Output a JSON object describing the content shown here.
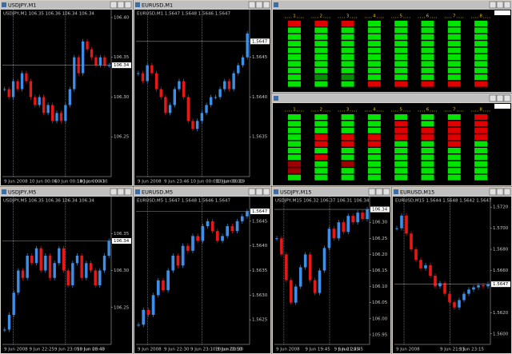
{
  "windows": [
    {
      "title": "USDJPY,M1",
      "header": "USDJPY,M1  106.35 106.36 106.34 106.34",
      "ylim": [
        106.2,
        106.41
      ],
      "yticks": [
        {
          "value": 106.4,
          "label": "106.40"
        },
        106.35,
        {
          "value": 106.3,
          "label": "106.30"
        },
        106.25
      ],
      "price_line": 106.34,
      "times": [
        "9 Jun 2008",
        "10 Jun 00:06",
        "10 Jun 00:14",
        "10 Jun 00:30",
        "10 Jun 00:41"
      ],
      "closes": [
        106.31,
        106.3,
        106.32,
        106.31,
        106.33,
        106.32,
        106.3,
        106.29,
        106.3,
        106.28,
        106.29,
        106.27,
        106.28,
        106.27,
        106.29,
        106.31,
        106.35,
        106.33,
        106.37,
        106.36,
        106.35,
        106.34,
        106.35,
        106.34,
        106.34
      ]
    },
    {
      "title": "EURUSD,M1",
      "header": "EURUSD,M1  1.5647 1.5648 1.5646 1.5647",
      "ylim": [
        1.563,
        1.5651
      ],
      "yticks": [
        1.5645,
        {
          "value": 1.564,
          "label": "1.5640"
        },
        1.5635
      ],
      "price_line": 1.5647,
      "times": [
        "9 Jun 2008",
        "9 Jun 23:46",
        "10 Jun 00:01",
        "10 Jun 00:19",
        "10 Jun 00:30"
      ],
      "closes": [
        1.5643,
        1.5642,
        1.5644,
        1.5643,
        1.5641,
        1.564,
        1.5638,
        1.5639,
        1.5641,
        1.5642,
        1.564,
        1.5637,
        1.5636,
        1.5637,
        1.5638,
        1.5639,
        1.564,
        1.564,
        1.5641,
        1.5642,
        1.5641,
        1.5643,
        1.5644,
        1.5645,
        1.5648
      ]
    },
    {
      "title": "USDJPY,M5",
      "header": "USDJPY,M5  106.35 106.36 106.34 106.34",
      "ylim": [
        106.2,
        106.4
      ],
      "yticks": [
        106.35,
        {
          "value": 106.3,
          "label": "106.30"
        },
        106.25
      ],
      "price_line": 106.34,
      "times": [
        "9 Jun 2008",
        "9 Jun 22:25",
        "9 Jun 23:05",
        "9 Jun 23:45",
        "10 Jun 00:40"
      ],
      "closes": [
        106.22,
        106.24,
        106.27,
        106.3,
        106.29,
        106.32,
        106.31,
        106.33,
        106.3,
        106.32,
        106.29,
        106.31,
        106.33,
        106.3,
        106.28,
        106.31,
        106.32,
        106.29,
        106.31,
        106.3,
        106.28,
        106.3,
        106.32,
        106.34
      ]
    },
    {
      "title": "EURUSD,M5",
      "header": "EURUSD,M5  1.5647 1.5648 1.5646 1.5647",
      "ylim": [
        1.562,
        1.565
      ],
      "yticks": [
        1.5645,
        {
          "value": 1.564,
          "label": "1.5640"
        },
        1.5635,
        {
          "value": 1.563,
          "label": "1.5630"
        },
        1.5625
      ],
      "price_line": 1.5647,
      "times": [
        "9 Jun 2008",
        "9 Jun 22:30",
        "9 Jun 23:10",
        "9 Jun 23:50",
        "10 Jun 00:30"
      ],
      "closes": [
        1.5624,
        1.5627,
        1.5626,
        1.563,
        1.5633,
        1.5631,
        1.5635,
        1.5638,
        1.5636,
        1.564,
        1.5639,
        1.5642,
        1.5641,
        1.5644,
        1.5645,
        1.5643,
        1.5641,
        1.5642,
        1.5644,
        1.5643,
        1.5645,
        1.5646,
        1.5647
      ]
    },
    {
      "title": "USDJPY,M15",
      "header": "USDJPY,M15  106.32 106.37 106.31 106.34",
      "ylim": [
        105.92,
        106.38
      ],
      "yticks": [
        {
          "value": 106.3,
          "label": "106.30"
        },
        106.25,
        {
          "value": 106.2,
          "label": "106.20"
        },
        106.15,
        {
          "value": 106.1,
          "label": "106.10"
        },
        106.05,
        {
          "value": 106.0,
          "label": "106.00"
        },
        105.95
      ],
      "price_line": 106.34,
      "times": [
        "9 Jun 2008",
        "9 Jun 19:45",
        "9 Jun 21:45",
        "9 Jun 23:45"
      ],
      "closes": [
        106.25,
        106.2,
        106.12,
        106.05,
        106.1,
        106.16,
        106.2,
        106.12,
        106.08,
        106.15,
        106.22,
        106.28,
        106.25,
        106.3,
        106.27,
        106.32,
        106.3,
        106.33,
        106.31,
        106.34
      ]
    },
    {
      "title": "EURUSD,M15",
      "header": "EURUSD,M15  1.5644 1.5648 1.5642 1.5647",
      "ylim": [
        1.559,
        1.573
      ],
      "yticks": [
        {
          "value": 1.572,
          "label": "1.5720"
        },
        {
          "value": 1.57,
          "label": "1.5700"
        },
        {
          "value": 1.568,
          "label": "1.5680"
        },
        {
          "value": 1.566,
          "label": "1.5660"
        },
        {
          "value": 1.562,
          "label": "1.5620"
        },
        {
          "value": 1.56,
          "label": "1.5600"
        }
      ],
      "price_line": 1.5647,
      "times": [
        "9 Jun 2008",
        "9 Jun 21:15",
        "9 Jun 23:15"
      ],
      "closes": [
        1.57,
        1.5712,
        1.5695,
        1.568,
        1.567,
        1.5662,
        1.5665,
        1.5655,
        1.5645,
        1.5648,
        1.5638,
        1.563,
        1.5625,
        1.5632,
        1.5638,
        1.5642,
        1.5644,
        1.5646,
        1.5645,
        1.5647
      ]
    }
  ],
  "indicators": [
    {
      "columns": [
        "1",
        "2",
        "3",
        "4",
        "5",
        "6",
        "7",
        "8"
      ],
      "cells": [
        [
          "r",
          "g",
          "g",
          "g",
          "g",
          "g",
          "g",
          "g",
          "g",
          "g"
        ],
        [
          "r",
          "g",
          "g",
          "g",
          "g",
          "g",
          "g",
          "g",
          "d",
          "g"
        ],
        [
          "r",
          "g",
          "g",
          "g",
          "g",
          "g",
          "g",
          "g",
          "d",
          "g"
        ],
        [
          "g",
          "g",
          "g",
          "g",
          "g",
          "g",
          "g",
          "g",
          "g",
          "r"
        ],
        [
          "g",
          "g",
          "g",
          "g",
          "g",
          "g",
          "g",
          "g",
          "g",
          "r"
        ],
        [
          "g",
          "g",
          "g",
          "g",
          "g",
          "g",
          "g",
          "g",
          "g",
          "r"
        ],
        [
          "g",
          "g",
          "g",
          "g",
          "g",
          "g",
          "g",
          "g",
          "g",
          "r"
        ],
        [
          "g",
          "g",
          "g",
          "g",
          "g",
          "g",
          "g",
          "g",
          "g",
          "r"
        ]
      ]
    },
    {
      "columns": [
        "1",
        "2",
        "3",
        "4",
        "5",
        "6",
        "7",
        "8"
      ],
      "cells": [
        [
          "g",
          "g",
          "g",
          "g",
          "g",
          "g",
          "g",
          "R",
          "R",
          "g"
        ],
        [
          "g",
          "g",
          "g",
          "r",
          "r",
          "g",
          "r",
          "g",
          "g",
          "g"
        ],
        [
          "g",
          "g",
          "g",
          "r",
          "r",
          "g",
          "g",
          "R",
          "g",
          "g"
        ],
        [
          "g",
          "g",
          "g",
          "r",
          "r",
          "g",
          "g",
          "g",
          "g",
          "g"
        ],
        [
          "g",
          "r",
          "r",
          "r",
          "g",
          "g",
          "g",
          "g",
          "g",
          "g"
        ],
        [
          "g",
          "g",
          "r",
          "r",
          "g",
          "g",
          "g",
          "g",
          "g",
          "g"
        ],
        [
          "g",
          "r",
          "r",
          "r",
          "r",
          "g",
          "g",
          "g",
          "g",
          "g"
        ],
        [
          "r",
          "r",
          "r",
          "r",
          "g",
          "g",
          "g",
          "g",
          "g",
          "g"
        ]
      ]
    }
  ]
}
